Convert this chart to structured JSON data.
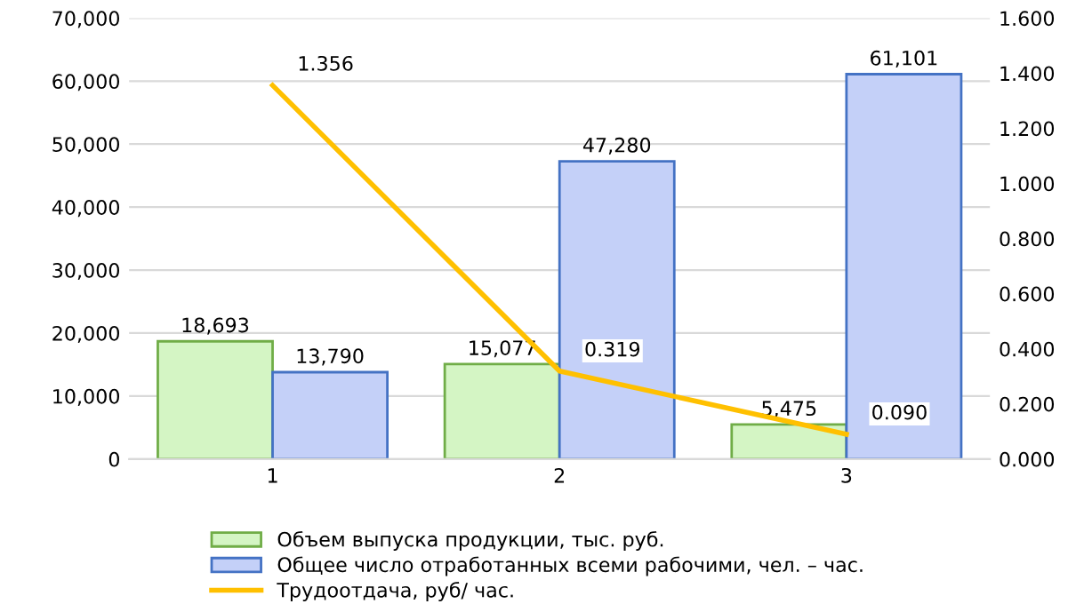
{
  "chart_data": {
    "type": "bar",
    "categories": [
      "1",
      "2",
      "3"
    ],
    "series": [
      {
        "name": "Объем выпуска продукции, тыс. руб.",
        "color": "#d4f5c4",
        "values": [
          18693,
          15077,
          5475
        ],
        "value_labels": [
          "18,693",
          "15,077",
          "5,475"
        ]
      },
      {
        "name": "Общее число отработанных всеми рабочими, чел. – час.",
        "color": "#c4d0f8",
        "values": [
          13790,
          47280,
          61101
        ],
        "value_labels": [
          "13,790",
          "47,280",
          "61,101"
        ]
      },
      {
        "name": "Трудоотдача, руб/ час.",
        "type": "line",
        "axis": "y2",
        "color": "#ffc000",
        "values": [
          1.356,
          0.319,
          0.09
        ],
        "value_labels": [
          "1.356",
          "0.319",
          "0.090"
        ]
      }
    ],
    "ylim": [
      0,
      70000
    ],
    "yticks": [
      {
        "value": 0,
        "label": "0"
      },
      {
        "value": 10000,
        "label": "10,000"
      },
      {
        "value": 20000,
        "label": "20,000"
      },
      {
        "value": 30000,
        "label": "30,000"
      },
      {
        "value": 40000,
        "label": "40,000"
      },
      {
        "value": 50000,
        "label": "50,000"
      },
      {
        "value": 60000,
        "label": "60,000"
      },
      {
        "value": 70000,
        "label": "70,000"
      }
    ],
    "y2lim": [
      0,
      1.6
    ],
    "y2ticks": [
      {
        "value": 0,
        "label": "0.000"
      },
      {
        "value": 0.2,
        "label": "0.200"
      },
      {
        "value": 0.4,
        "label": "0.400"
      },
      {
        "value": 0.6,
        "label": "0.600"
      },
      {
        "value": 0.8,
        "label": "0.800"
      },
      {
        "value": 1.0,
        "label": "1.000"
      },
      {
        "value": 1.2,
        "label": "1.200"
      },
      {
        "value": 1.4,
        "label": "1.400"
      },
      {
        "value": 1.6,
        "label": "1.600"
      }
    ],
    "grid": "y",
    "legend": "bottom"
  }
}
